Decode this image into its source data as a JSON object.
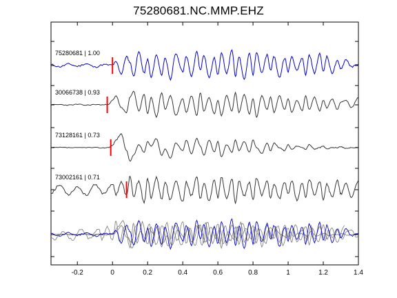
{
  "chart_data": {
    "type": "line",
    "title": "75280681.NC.MMP.EHZ",
    "xlabel": "",
    "ylabel": "",
    "xlim": [
      -0.35,
      1.4
    ],
    "xticks": [
      -0.2,
      0,
      0.2,
      0.4,
      0.6,
      0.8,
      1,
      1.2,
      1.4
    ],
    "xtick_labels": [
      "-0.2",
      "0",
      "0.2",
      "0.4",
      "0.6",
      "0.8",
      "1",
      "1.2",
      "1.4"
    ],
    "grid": false,
    "legend": "none",
    "colors": {
      "master": "#0000cc",
      "other": "#333333",
      "overlay_other": "#777777",
      "pick": "#ff0000"
    },
    "traces": [
      {
        "label": "75280681 | 1.00",
        "pick": 0.0,
        "color": "master",
        "noise": 0.11,
        "seed": 11,
        "x": [
          -0.35,
          -0.3,
          -0.25,
          -0.2,
          -0.15,
          -0.1,
          -0.05,
          0,
          0.02,
          0.05,
          0.08,
          0.1,
          0.12,
          0.15,
          0.18,
          0.2,
          0.22,
          0.25,
          0.28,
          0.3,
          0.33,
          0.36,
          0.4,
          0.42,
          0.45,
          0.48,
          0.5,
          0.52,
          0.55,
          0.58,
          0.6,
          0.62,
          0.65,
          0.68,
          0.7,
          0.72,
          0.75,
          0.78,
          0.8,
          0.82,
          0.85,
          0.88,
          0.9,
          0.92,
          0.95,
          0.98,
          1.0,
          1.02,
          1.05,
          1.08,
          1.1,
          1.12,
          1.15,
          1.18,
          1.2,
          1.22,
          1.25,
          1.28,
          1.3,
          1.33,
          1.36,
          1.4
        ],
        "y": [
          0.05,
          -0.08,
          0.1,
          -0.05,
          0.12,
          -0.1,
          0.06,
          0.02,
          0.25,
          -0.55,
          0.6,
          0.2,
          -0.7,
          0.9,
          -0.5,
          0.4,
          -0.8,
          0.7,
          -0.6,
          0.5,
          -0.9,
          0.8,
          -0.4,
          0.6,
          -0.7,
          0.9,
          -0.3,
          0.7,
          -0.8,
          0.5,
          -0.6,
          0.8,
          -0.5,
          1.0,
          -0.7,
          0.6,
          -0.9,
          0.8,
          -0.6,
          0.9,
          -0.5,
          0.7,
          -0.3,
          0.6,
          -0.8,
          0.5,
          -0.4,
          0.6,
          -0.3,
          0.5,
          -0.6,
          0.7,
          -0.5,
          0.8,
          -0.4,
          0.6,
          -0.5,
          0.3,
          -0.2,
          0.4,
          -0.1,
          0.1
        ]
      },
      {
        "label": "30066738 | 0.93",
        "pick": -0.03,
        "color": "other",
        "noise": 0.06,
        "seed": 23,
        "x": [
          -0.35,
          -0.3,
          -0.25,
          -0.2,
          -0.15,
          -0.1,
          -0.05,
          -0.02,
          0.0,
          0.02,
          0.05,
          0.08,
          0.1,
          0.12,
          0.15,
          0.18,
          0.2,
          0.22,
          0.25,
          0.28,
          0.3,
          0.33,
          0.36,
          0.4,
          0.42,
          0.45,
          0.48,
          0.5,
          0.52,
          0.55,
          0.58,
          0.6,
          0.62,
          0.65,
          0.68,
          0.7,
          0.72,
          0.75,
          0.78,
          0.8,
          0.82,
          0.85,
          0.88,
          0.9,
          0.92,
          0.95,
          0.98,
          1.0,
          1.02,
          1.05,
          1.08,
          1.1,
          1.12,
          1.15,
          1.18,
          1.2,
          1.22,
          1.25,
          1.28,
          1.3,
          1.33,
          1.36,
          1.4
        ],
        "y": [
          0.0,
          0.02,
          -0.02,
          0.03,
          -0.02,
          0.02,
          0.0,
          0.05,
          0.3,
          0.6,
          -0.2,
          -0.5,
          0.5,
          0.9,
          -0.4,
          0.7,
          -0.6,
          0.5,
          -0.8,
          0.8,
          -0.3,
          0.6,
          -0.7,
          0.4,
          -0.5,
          0.6,
          -0.7,
          0.8,
          -0.4,
          0.5,
          -0.6,
          0.3,
          -0.7,
          0.6,
          -0.4,
          0.8,
          -0.5,
          0.7,
          -0.6,
          0.4,
          -0.8,
          0.6,
          -0.3,
          0.5,
          -0.5,
          0.6,
          -0.3,
          0.4,
          -0.5,
          0.3,
          -0.4,
          0.6,
          -0.3,
          0.5,
          -0.4,
          0.3,
          -0.2,
          0.4,
          -0.3,
          0.2,
          0.3,
          -0.2,
          0.5
        ]
      },
      {
        "label": "73128161 | 0.73",
        "pick": -0.01,
        "color": "other",
        "noise": 0.05,
        "seed": 37,
        "x": [
          -0.35,
          -0.3,
          -0.25,
          -0.2,
          -0.15,
          -0.1,
          -0.05,
          -0.02,
          0.0,
          0.02,
          0.05,
          0.08,
          0.1,
          0.12,
          0.15,
          0.18,
          0.2,
          0.22,
          0.25,
          0.28,
          0.3,
          0.33,
          0.36,
          0.4,
          0.42,
          0.45,
          0.48,
          0.5,
          0.52,
          0.55,
          0.58,
          0.6,
          0.62,
          0.65,
          0.68,
          0.7,
          0.72,
          0.75,
          0.78,
          0.8,
          0.82,
          0.85,
          0.88,
          0.9,
          0.92,
          0.95,
          0.98,
          1.0,
          1.02,
          1.05,
          1.08,
          1.1,
          1.12,
          1.15,
          1.18,
          1.2,
          1.22,
          1.25,
          1.28,
          1.3,
          1.33,
          1.36,
          1.4
        ],
        "y": [
          0.0,
          0.01,
          0.0,
          -0.01,
          0.01,
          0.0,
          -0.02,
          0.02,
          0.15,
          0.5,
          0.9,
          -0.2,
          -0.9,
          -0.5,
          0.2,
          -0.3,
          0.4,
          0.1,
          0.6,
          -0.5,
          -0.1,
          -0.7,
          0.3,
          -0.2,
          0.5,
          -0.4,
          0.6,
          0.1,
          -0.5,
          0.5,
          -0.3,
          0.4,
          -0.6,
          0.2,
          -0.3,
          0.5,
          -0.2,
          0.4,
          -0.3,
          0.5,
          0.0,
          -0.4,
          0.3,
          -0.2,
          0.3,
          0.0,
          -0.2,
          0.2,
          -0.1,
          0.1,
          0.0,
          -0.1,
          0.2,
          -0.1,
          0.0,
          0.1,
          -0.1,
          0.0,
          0.0,
          0.05,
          -0.05,
          0.0,
          0.0
        ]
      },
      {
        "label": "73002161 | 0.71",
        "pick": 0.08,
        "color": "other",
        "noise": 0.16,
        "seed": 53,
        "x": [
          -0.35,
          -0.3,
          -0.25,
          -0.2,
          -0.15,
          -0.1,
          -0.05,
          0.0,
          0.02,
          0.05,
          0.08,
          0.1,
          0.12,
          0.15,
          0.18,
          0.2,
          0.22,
          0.25,
          0.28,
          0.3,
          0.33,
          0.36,
          0.4,
          0.42,
          0.45,
          0.48,
          0.5,
          0.52,
          0.55,
          0.58,
          0.6,
          0.62,
          0.65,
          0.68,
          0.7,
          0.72,
          0.75,
          0.78,
          0.8,
          0.82,
          0.85,
          0.88,
          0.9,
          0.92,
          0.95,
          0.98,
          1.0,
          1.02,
          1.05,
          1.08,
          1.1,
          1.12,
          1.15,
          1.18,
          1.2,
          1.22,
          1.25,
          1.28,
          1.3,
          1.33,
          1.36,
          1.4
        ],
        "y": [
          -0.2,
          0.3,
          -0.3,
          0.2,
          -0.35,
          0.3,
          -0.25,
          0.4,
          -0.3,
          0.5,
          -0.4,
          0.9,
          -0.5,
          0.6,
          -0.9,
          0.7,
          -0.5,
          0.8,
          -0.6,
          0.5,
          -0.7,
          0.6,
          -0.8,
          0.5,
          -0.4,
          0.9,
          -0.6,
          0.4,
          -0.7,
          0.6,
          -0.5,
          0.8,
          -0.6,
          0.7,
          -0.9,
          0.6,
          -0.4,
          0.5,
          -0.7,
          0.8,
          -0.4,
          0.6,
          -0.5,
          0.4,
          -0.6,
          0.5,
          -0.3,
          0.6,
          -0.7,
          0.4,
          -0.5,
          0.7,
          -0.3,
          0.5,
          -0.6,
          0.4,
          -0.5,
          0.6,
          -0.3,
          0.4,
          -0.5,
          0.6
        ]
      }
    ]
  }
}
